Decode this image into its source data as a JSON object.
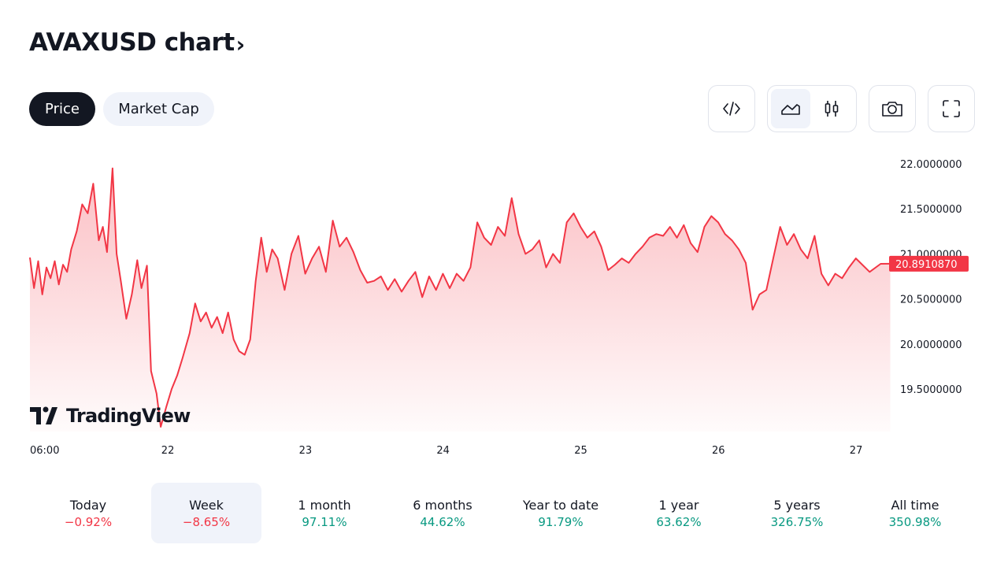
{
  "header": {
    "title": "AVAXUSD chart",
    "chevron": "›"
  },
  "tabs": [
    {
      "label": "Price",
      "active": true
    },
    {
      "label": "Market Cap",
      "active": false
    }
  ],
  "toolbar": {
    "icons": [
      "code-icon",
      "area-chart-icon",
      "candles-icon",
      "camera-icon",
      "fullscreen-icon"
    ],
    "active_style": "area"
  },
  "watermark": "TradingView",
  "colors": {
    "line": "#f23645",
    "fill_top": "#f23645",
    "positive": "#089981",
    "negative": "#f23645",
    "dark": "#131722",
    "light_bg": "#f0f3fa"
  },
  "chart_data": {
    "type": "area",
    "symbol": "AVAXUSD",
    "x_labels": [
      "06:00",
      "22",
      "23",
      "24",
      "25",
      "26",
      "27"
    ],
    "y_ticks": [
      "22.0000000",
      "21.5000000",
      "21.0000000",
      "20.5000000",
      "20.0000000",
      "19.5000000"
    ],
    "ylim": [
      19.05,
      22.15
    ],
    "x_start": 0,
    "x_end": 6.25,
    "last_price": "20.8910870",
    "grid": false,
    "series": [
      {
        "values": [
          [
            0.0,
            20.96
          ],
          [
            0.03,
            20.62
          ],
          [
            0.06,
            20.92
          ],
          [
            0.09,
            20.55
          ],
          [
            0.12,
            20.85
          ],
          [
            0.15,
            20.73
          ],
          [
            0.18,
            20.92
          ],
          [
            0.21,
            20.66
          ],
          [
            0.24,
            20.88
          ],
          [
            0.27,
            20.8
          ],
          [
            0.3,
            21.05
          ],
          [
            0.34,
            21.25
          ],
          [
            0.38,
            21.55
          ],
          [
            0.42,
            21.45
          ],
          [
            0.46,
            21.78
          ],
          [
            0.5,
            21.15
          ],
          [
            0.53,
            21.3
          ],
          [
            0.56,
            21.02
          ],
          [
            0.6,
            21.95
          ],
          [
            0.63,
            21.0
          ],
          [
            0.66,
            20.7
          ],
          [
            0.7,
            20.28
          ],
          [
            0.74,
            20.55
          ],
          [
            0.78,
            20.93
          ],
          [
            0.81,
            20.62
          ],
          [
            0.85,
            20.87
          ],
          [
            0.88,
            19.7
          ],
          [
            0.92,
            19.45
          ],
          [
            0.95,
            19.08
          ],
          [
            0.99,
            19.3
          ],
          [
            1.03,
            19.5
          ],
          [
            1.07,
            19.65
          ],
          [
            1.11,
            19.85
          ],
          [
            1.16,
            20.12
          ],
          [
            1.2,
            20.45
          ],
          [
            1.24,
            20.25
          ],
          [
            1.28,
            20.35
          ],
          [
            1.32,
            20.18
          ],
          [
            1.36,
            20.3
          ],
          [
            1.4,
            20.12
          ],
          [
            1.44,
            20.35
          ],
          [
            1.48,
            20.05
          ],
          [
            1.52,
            19.92
          ],
          [
            1.56,
            19.88
          ],
          [
            1.6,
            20.05
          ],
          [
            1.64,
            20.7
          ],
          [
            1.68,
            21.18
          ],
          [
            1.72,
            20.8
          ],
          [
            1.76,
            21.05
          ],
          [
            1.8,
            20.95
          ],
          [
            1.85,
            20.6
          ],
          [
            1.9,
            21.0
          ],
          [
            1.95,
            21.2
          ],
          [
            2.0,
            20.78
          ],
          [
            2.05,
            20.95
          ],
          [
            2.1,
            21.08
          ],
          [
            2.15,
            20.8
          ],
          [
            2.2,
            21.37
          ],
          [
            2.25,
            21.08
          ],
          [
            2.3,
            21.18
          ],
          [
            2.35,
            21.02
          ],
          [
            2.4,
            20.82
          ],
          [
            2.45,
            20.68
          ],
          [
            2.5,
            20.7
          ],
          [
            2.55,
            20.75
          ],
          [
            2.6,
            20.6
          ],
          [
            2.65,
            20.72
          ],
          [
            2.7,
            20.58
          ],
          [
            2.75,
            20.7
          ],
          [
            2.8,
            20.8
          ],
          [
            2.85,
            20.52
          ],
          [
            2.9,
            20.75
          ],
          [
            2.95,
            20.6
          ],
          [
            3.0,
            20.78
          ],
          [
            3.05,
            20.62
          ],
          [
            3.1,
            20.78
          ],
          [
            3.15,
            20.7
          ],
          [
            3.2,
            20.85
          ],
          [
            3.25,
            21.35
          ],
          [
            3.3,
            21.18
          ],
          [
            3.35,
            21.1
          ],
          [
            3.4,
            21.3
          ],
          [
            3.45,
            21.2
          ],
          [
            3.5,
            21.62
          ],
          [
            3.55,
            21.22
          ],
          [
            3.6,
            21.0
          ],
          [
            3.65,
            21.05
          ],
          [
            3.7,
            21.15
          ],
          [
            3.75,
            20.85
          ],
          [
            3.8,
            21.0
          ],
          [
            3.85,
            20.9
          ],
          [
            3.9,
            21.35
          ],
          [
            3.95,
            21.45
          ],
          [
            4.0,
            21.3
          ],
          [
            4.05,
            21.18
          ],
          [
            4.1,
            21.25
          ],
          [
            4.15,
            21.08
          ],
          [
            4.2,
            20.82
          ],
          [
            4.25,
            20.88
          ],
          [
            4.3,
            20.95
          ],
          [
            4.35,
            20.9
          ],
          [
            4.4,
            21.0
          ],
          [
            4.45,
            21.08
          ],
          [
            4.5,
            21.18
          ],
          [
            4.55,
            21.22
          ],
          [
            4.6,
            21.2
          ],
          [
            4.65,
            21.3
          ],
          [
            4.7,
            21.18
          ],
          [
            4.75,
            21.32
          ],
          [
            4.8,
            21.12
          ],
          [
            4.85,
            21.02
          ],
          [
            4.9,
            21.3
          ],
          [
            4.95,
            21.42
          ],
          [
            5.0,
            21.35
          ],
          [
            5.05,
            21.22
          ],
          [
            5.1,
            21.15
          ],
          [
            5.15,
            21.05
          ],
          [
            5.2,
            20.9
          ],
          [
            5.25,
            20.38
          ],
          [
            5.3,
            20.55
          ],
          [
            5.35,
            20.6
          ],
          [
            5.4,
            20.95
          ],
          [
            5.45,
            21.3
          ],
          [
            5.5,
            21.1
          ],
          [
            5.55,
            21.22
          ],
          [
            5.6,
            21.05
          ],
          [
            5.65,
            20.95
          ],
          [
            5.7,
            21.2
          ],
          [
            5.75,
            20.78
          ],
          [
            5.8,
            20.65
          ],
          [
            5.85,
            20.78
          ],
          [
            5.9,
            20.73
          ],
          [
            5.95,
            20.85
          ],
          [
            6.0,
            20.95
          ],
          [
            6.1,
            20.8
          ],
          [
            6.18,
            20.89
          ],
          [
            6.25,
            20.891087
          ]
        ]
      }
    ]
  },
  "performance": [
    {
      "label": "Today",
      "value": "−0.92%",
      "positive": false,
      "active": false
    },
    {
      "label": "Week",
      "value": "−8.65%",
      "positive": false,
      "active": true
    },
    {
      "label": "1 month",
      "value": "97.11%",
      "positive": true,
      "active": false
    },
    {
      "label": "6 months",
      "value": "44.62%",
      "positive": true,
      "active": false
    },
    {
      "label": "Year to date",
      "value": "91.79%",
      "positive": true,
      "active": false
    },
    {
      "label": "1 year",
      "value": "63.62%",
      "positive": true,
      "active": false
    },
    {
      "label": "5 years",
      "value": "326.75%",
      "positive": true,
      "active": false
    },
    {
      "label": "All time",
      "value": "350.98%",
      "positive": true,
      "active": false
    }
  ]
}
